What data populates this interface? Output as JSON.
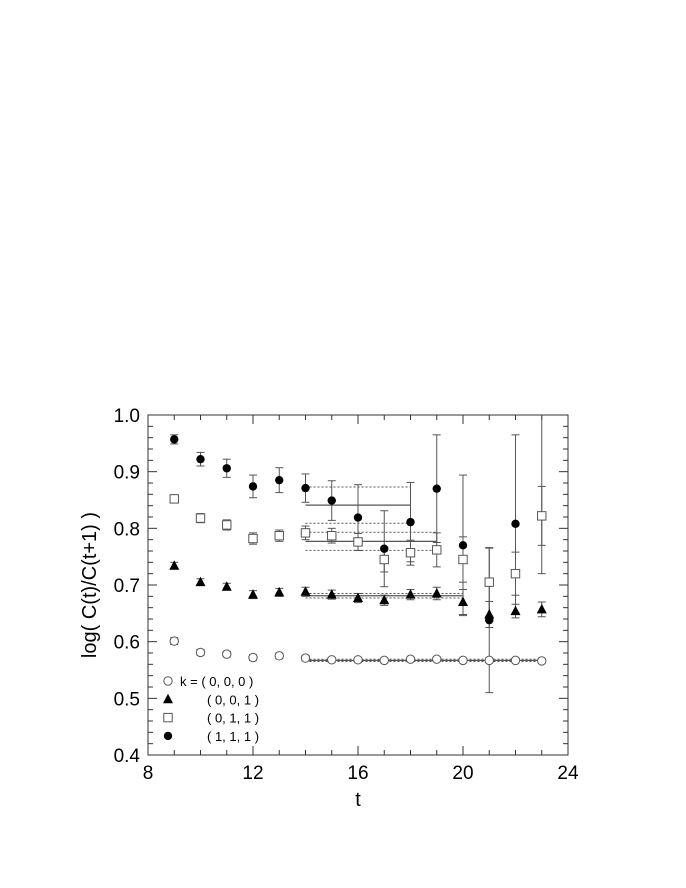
{
  "chart_data": {
    "type": "scatter",
    "xlabel": "t",
    "ylabel": "log( C(t)/C(t+1) )",
    "xlim": [
      8,
      24
    ],
    "ylim": [
      0.4,
      1.0
    ],
    "xticks": [
      8,
      12,
      16,
      20,
      24
    ],
    "xtick_labels": [
      "8",
      "12",
      "16",
      "20",
      "24"
    ],
    "yticks": [
      0.4,
      0.5,
      0.6,
      0.7,
      0.8,
      0.9,
      1.0
    ],
    "ytick_labels": [
      "0.4",
      "0.5",
      "0.6",
      "0.7",
      "0.8",
      "0.9",
      "1.0"
    ],
    "grid": false,
    "legend_position": "bottom-left",
    "series": [
      {
        "name": "k = ( 0, 0, 0 )",
        "marker": "open-circle",
        "color": "#555555",
        "x": [
          9,
          10,
          11,
          12,
          13,
          14,
          15,
          16,
          17,
          18,
          19,
          20,
          21,
          22,
          23
        ],
        "y": [
          0.601,
          0.581,
          0.578,
          0.572,
          0.575,
          0.571,
          0.568,
          0.568,
          0.567,
          0.569,
          0.569,
          0.567,
          0.567,
          0.567,
          0.566
        ],
        "yerr": [
          0.006,
          0.005,
          0.005,
          0.005,
          0.005,
          0.005,
          0.004,
          0.004,
          0.004,
          0.004,
          0.004,
          0.004,
          0.004,
          0.004,
          0.004
        ],
        "fit": {
          "t_min": 14,
          "t_max": 23,
          "value": 0.567,
          "err": 0.002
        }
      },
      {
        "name": "( 0, 0, 1 )",
        "marker": "filled-triangle",
        "color": "#000000",
        "x": [
          9,
          10,
          11,
          12,
          13,
          14,
          15,
          16,
          17,
          18,
          19,
          20,
          21,
          22,
          23
        ],
        "y": [
          0.734,
          0.705,
          0.697,
          0.683,
          0.687,
          0.688,
          0.683,
          0.677,
          0.673,
          0.683,
          0.685,
          0.67,
          0.648,
          0.654,
          0.657
        ],
        "yerr": [
          0.006,
          0.006,
          0.006,
          0.007,
          0.007,
          0.008,
          0.008,
          0.008,
          0.009,
          0.009,
          0.011,
          0.022,
          0.023,
          0.012,
          0.013
        ],
        "fit": {
          "t_min": 14,
          "t_max": 20,
          "value": 0.681,
          "err": 0.004
        }
      },
      {
        "name": "( 0, 1, 1 )",
        "marker": "open-square",
        "color": "#555555",
        "x": [
          9,
          10,
          11,
          12,
          13,
          14,
          15,
          16,
          17,
          18,
          19,
          20,
          21,
          22,
          23
        ],
        "y": [
          0.852,
          0.818,
          0.806,
          0.782,
          0.787,
          0.792,
          0.787,
          0.776,
          0.745,
          0.757,
          0.762,
          0.745,
          0.705,
          0.72,
          0.822
        ],
        "yerr": [
          0.007,
          0.008,
          0.009,
          0.01,
          0.01,
          0.012,
          0.013,
          0.015,
          0.022,
          0.022,
          0.03,
          0.04,
          0.06,
          0.038,
          0.052
        ],
        "fit": {
          "t_min": 14,
          "t_max": 19,
          "value": 0.777,
          "err": 0.016
        }
      },
      {
        "name": "( 1, 1, 1 )",
        "marker": "filled-circle",
        "color": "#000000",
        "x": [
          9,
          10,
          11,
          12,
          13,
          14,
          15,
          16,
          17,
          18,
          19,
          20,
          21,
          22,
          23
        ],
        "y": [
          0.957,
          0.922,
          0.906,
          0.874,
          0.885,
          0.871,
          0.849,
          0.819,
          0.764,
          0.811,
          0.87,
          0.77,
          0.638,
          0.808,
          1.02
        ],
        "yerr": [
          0.008,
          0.012,
          0.016,
          0.02,
          0.022,
          0.025,
          0.035,
          0.058,
          0.067,
          0.07,
          0.095,
          0.124,
          0.128,
          0.157,
          0.3
        ],
        "fit": {
          "t_min": 14,
          "t_max": 18,
          "value": 0.841,
          "err": 0.032
        }
      }
    ]
  }
}
